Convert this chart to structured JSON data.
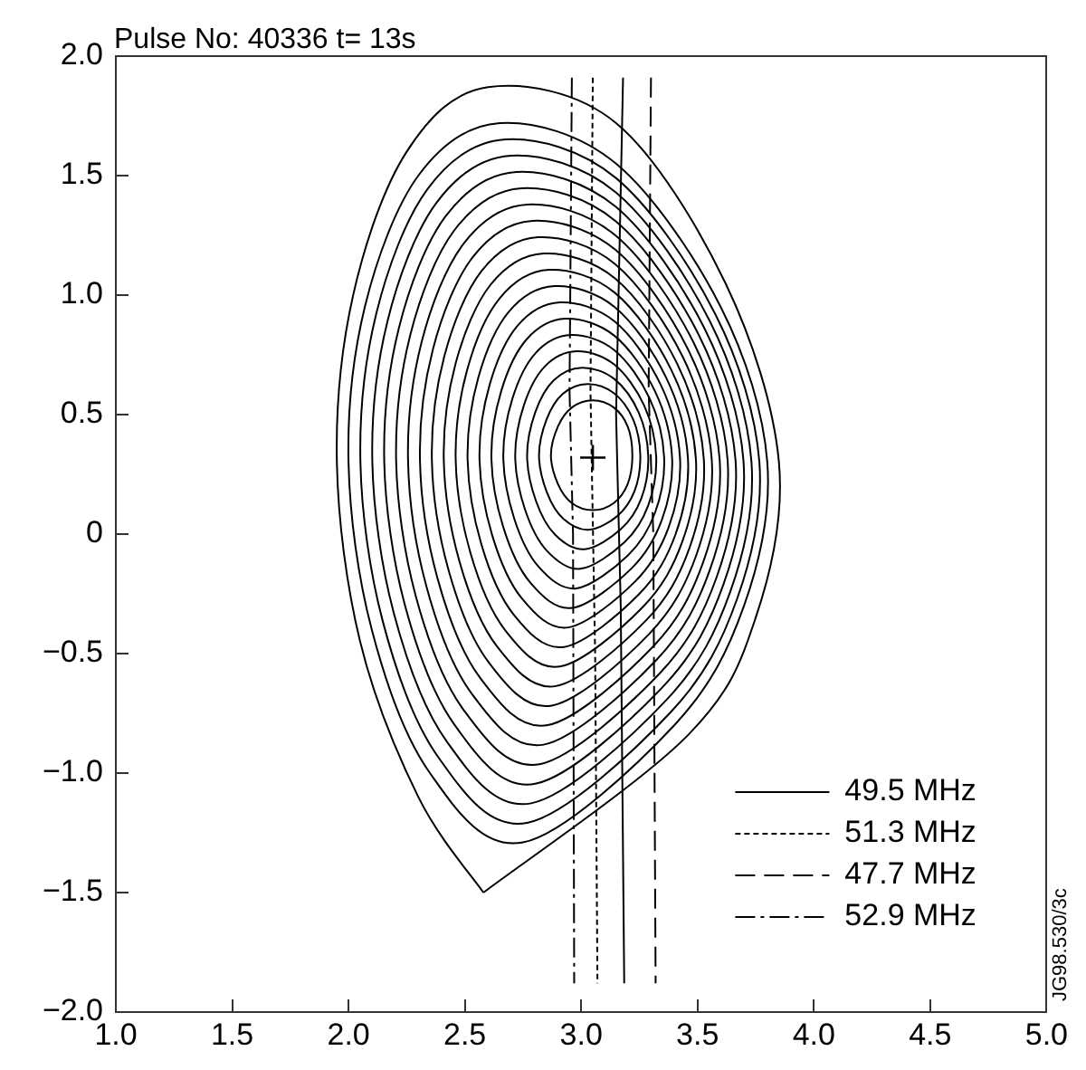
{
  "chart_data": {
    "type": "line",
    "title": "Pulse No: 40336 t= 13s",
    "annotations": [
      "JG98.530/3c"
    ],
    "xlim": [
      1,
      5
    ],
    "ylim": [
      -2,
      2
    ],
    "xticks": [
      {
        "value": 1,
        "label": "1.0"
      },
      {
        "value": 1.5,
        "label": "1.5"
      },
      {
        "value": 2,
        "label": "2.0"
      },
      {
        "value": 2.5,
        "label": "2.5"
      },
      {
        "value": 3,
        "label": "3.0"
      },
      {
        "value": 3.5,
        "label": "3.5"
      },
      {
        "value": 4,
        "label": "4.0"
      },
      {
        "value": 4.5,
        "label": "4.5"
      },
      {
        "value": 5,
        "label": "5.0"
      }
    ],
    "yticks": [
      {
        "value": -2,
        "label": "−2.0"
      },
      {
        "value": -1.5,
        "label": "−1.5"
      },
      {
        "value": -1,
        "label": "−1.0"
      },
      {
        "value": -0.5,
        "label": "−0.5"
      },
      {
        "value": 0,
        "label": "0"
      },
      {
        "value": 0.5,
        "label": "0.5"
      },
      {
        "value": 1,
        "label": "1.0"
      },
      {
        "value": 1.5,
        "label": "1.5"
      },
      {
        "value": 2,
        "label": "2.0"
      }
    ],
    "grid": false,
    "legend": "bottom right",
    "marker": "none",
    "series": [
      {
        "name": "49.5 MHz",
        "color": "#000000",
        "line_style": "solid",
        "x": [
          3.18,
          3.15,
          3.17,
          3.185
        ],
        "values": [
          1.91,
          0.5,
          -0.3,
          -1.88
        ]
      },
      {
        "name": "51.3 MHz",
        "color": "#000000",
        "line_style": "dotted",
        "x": [
          3.05,
          3.04,
          3.06,
          3.07
        ],
        "values": [
          1.91,
          0.6,
          -0.5,
          -1.88
        ]
      },
      {
        "name": "47.7 MHz",
        "color": "#000000",
        "line_style": "dashed",
        "x": [
          3.3,
          3.29,
          3.31,
          3.32
        ],
        "values": [
          1.91,
          0.6,
          0,
          -1.88
        ]
      },
      {
        "name": "52.9 MHz",
        "color": "#000000",
        "line_style": "dashdot",
        "x": [
          2.96,
          2.95,
          2.965,
          2.97
        ],
        "values": [
          1.91,
          0.6,
          0,
          -1.88
        ]
      },
      {
        "type": "scatter",
        "color": "#000000",
        "marker": "cross",
        "x": [
          3.05
        ],
        "values": [
          0.32
        ]
      }
    ]
  }
}
